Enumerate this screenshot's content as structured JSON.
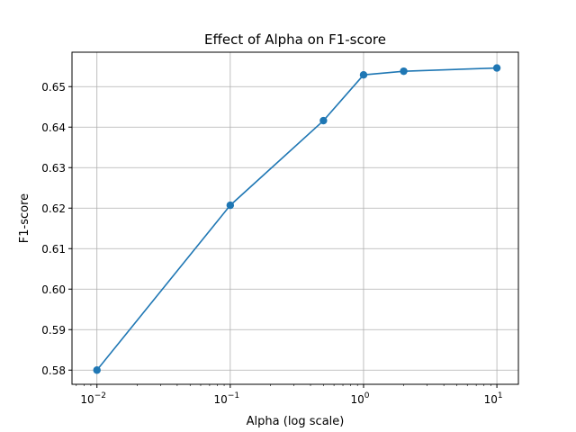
{
  "chart_data": {
    "type": "line",
    "title": "Effect of Alpha on F1-score",
    "xlabel": "Alpha (log scale)",
    "ylabel": "F1-score",
    "x_scale": "log",
    "grid": true,
    "color": "#1f77b4",
    "xlim": [
      0.0065,
      14.5
    ],
    "ylim": [
      0.5765,
      0.6585
    ],
    "x_ticks": [
      {
        "value": 0.01,
        "base": "10",
        "exp": "−2"
      },
      {
        "value": 0.1,
        "base": "10",
        "exp": "−1"
      },
      {
        "value": 1,
        "base": "10",
        "exp": "0"
      },
      {
        "value": 10,
        "base": "10",
        "exp": "1"
      }
    ],
    "y_ticks": [
      "0.58",
      "0.59",
      "0.60",
      "0.61",
      "0.62",
      "0.63",
      "0.64",
      "0.65"
    ],
    "series": [
      {
        "x": [
          0.01,
          0.1,
          0.5,
          1,
          2,
          10
        ],
        "y": [
          0.58,
          0.6207,
          0.6416,
          0.6529,
          0.6538,
          0.6546
        ]
      }
    ]
  }
}
